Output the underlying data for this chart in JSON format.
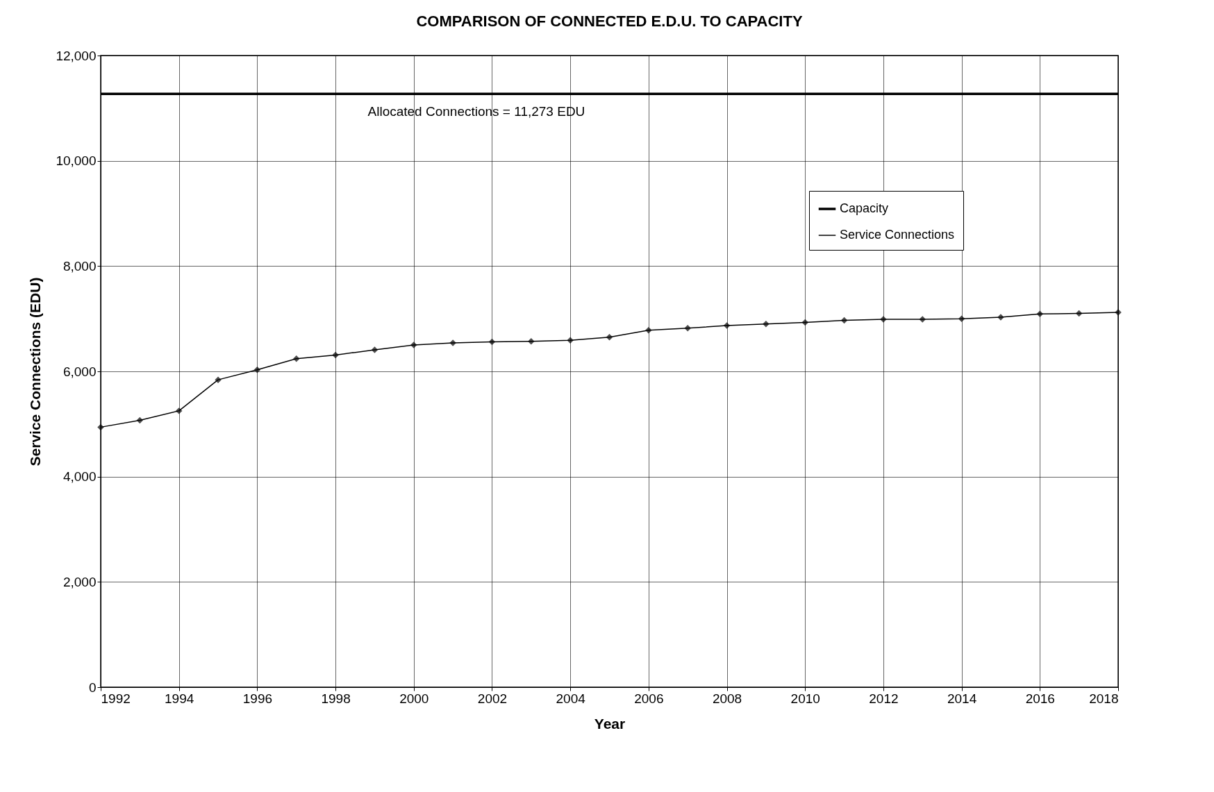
{
  "chart_data": {
    "type": "line",
    "title": "COMPARISON OF CONNECTED E.D.U. TO CAPACITY",
    "xlabel": "Year",
    "ylabel": "Service Connections (EDU)",
    "x": [
      1992,
      1993,
      1994,
      1995,
      1996,
      1997,
      1998,
      1999,
      2000,
      2001,
      2002,
      2003,
      2004,
      2005,
      2006,
      2007,
      2008,
      2009,
      2010,
      2011,
      2012,
      2013,
      2014,
      2015,
      2016,
      2017,
      2018
    ],
    "series": [
      {
        "name": "Capacity",
        "color": "#000000",
        "marker": "none",
        "x": [
          1992,
          2018
        ],
        "values": [
          11273,
          11273
        ]
      },
      {
        "name": "Service Connections",
        "color": "#000000",
        "marker": "diamond",
        "values": [
          4940,
          5070,
          5250,
          5840,
          6030,
          6240,
          6310,
          6410,
          6500,
          6540,
          6560,
          6570,
          6590,
          6650,
          6780,
          6820,
          6870,
          6900,
          6930,
          6970,
          6990,
          6990,
          7000,
          7030,
          7090,
          7100,
          7120
        ]
      }
    ],
    "annotations": [
      {
        "text": "Allocated Connections = 11,273 EDU",
        "x": 2001.6,
        "y": 11273
      }
    ],
    "xlim": [
      1992,
      2018
    ],
    "xticks": [
      1992,
      1994,
      1996,
      1998,
      2000,
      2002,
      2004,
      2006,
      2008,
      2010,
      2012,
      2014,
      2016,
      2018
    ],
    "ylim": [
      0,
      12000
    ],
    "yticks": [
      0,
      {
        "value": 2000,
        "label": "2,000"
      },
      {
        "value": 4000,
        "label": "4,000"
      },
      {
        "value": 6000,
        "label": "6,000"
      },
      {
        "value": 8000,
        "label": "8,000"
      },
      {
        "value": 10000,
        "label": "10,000"
      },
      {
        "value": 12000,
        "label": "12,000"
      }
    ],
    "grid": true,
    "legend": "top right",
    "line_style": "solid"
  }
}
